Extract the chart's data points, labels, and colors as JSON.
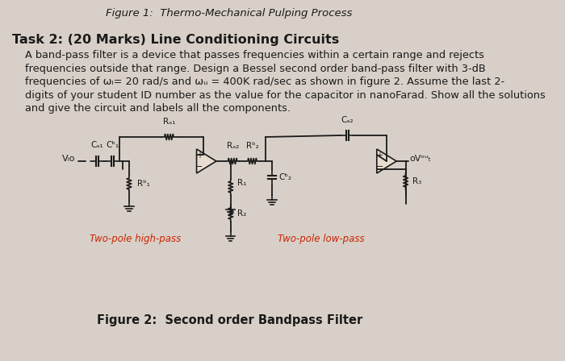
{
  "title": "Figure 1:  Thermo-Mechanical Pulping Process",
  "task_heading": "Task 2: (20 Marks) Line Conditioning Circuits",
  "paragraph": "A band-pass filter is a device that passes frequencies within a certain range and rejects\nfrequencies outside that range. Design a Bessel second order band-pass filter with 3-dB\nfrequencies of ωₗ= 20 rad/s and ωᵤ = 400K rad/sec as shown in figure 2. Assume the last 2-\ndigits of your student ID number as the value for the capacitor in nanoFarad. Show all the solutions\nand give the circuit and labels all the components.",
  "fig_caption": "Figure 2:  Second order Bandpass Filter",
  "two_pole_high": "Two-pole high-pass",
  "two_pole_low": "Two-pole low-pass",
  "bg_color": "#d8d0c8",
  "text_color": "#1a1a1a",
  "circuit_color": "#1a1a1a",
  "red_label_color": "#cc2200",
  "title_fontsize": 9.5,
  "body_fontsize": 9.5,
  "heading_fontsize": 11.5
}
